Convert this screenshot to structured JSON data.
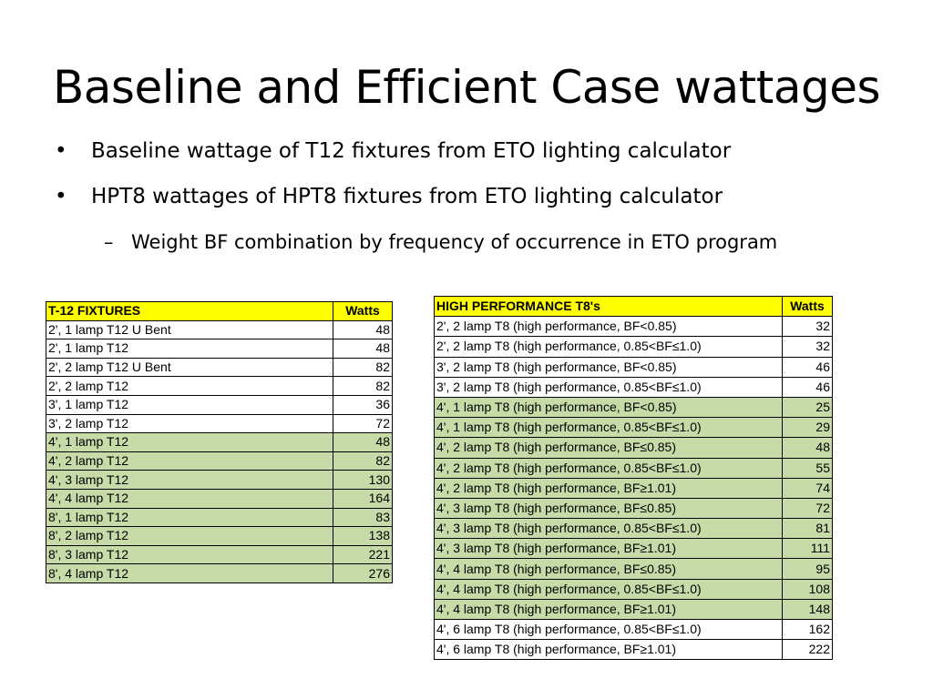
{
  "slide": {
    "title": "Baseline and Efficient Case wattages",
    "bullets": [
      "Baseline wattage of T12 fixtures from ETO lighting calculator",
      "HPT8 wattages of HPT8 fixtures from ETO lighting calculator"
    ],
    "sub_bullet": "Weight BF combination by frequency of occurrence in ETO program",
    "bullet_symbol": "•",
    "dash_symbol": "–"
  },
  "colors": {
    "header_fill": "#ffff00",
    "highlight_fill": "#c6dba7"
  },
  "t12_table": {
    "headers": [
      "T-12 FIXTURES",
      "Watts"
    ],
    "rows": [
      {
        "fixture": "2', 1 lamp T12 U Bent",
        "watts": "48",
        "highlight": false
      },
      {
        "fixture": "2', 1 lamp T12",
        "watts": "48",
        "highlight": false
      },
      {
        "fixture": "2', 2 lamp T12 U Bent",
        "watts": "82",
        "highlight": false
      },
      {
        "fixture": "2', 2 lamp T12",
        "watts": "82",
        "highlight": false
      },
      {
        "fixture": "3', 1 lamp T12",
        "watts": "36",
        "highlight": false
      },
      {
        "fixture": "3', 2 lamp T12",
        "watts": "72",
        "highlight": false
      },
      {
        "fixture": "4', 1 lamp T12",
        "watts": "48",
        "highlight": true
      },
      {
        "fixture": "4', 2 lamp T12",
        "watts": "82",
        "highlight": true
      },
      {
        "fixture": "4', 3 lamp T12",
        "watts": "130",
        "highlight": true
      },
      {
        "fixture": "4', 4 lamp T12",
        "watts": "164",
        "highlight": true
      },
      {
        "fixture": "8', 1 lamp T12",
        "watts": "83",
        "highlight": true
      },
      {
        "fixture": "8', 2 lamp T12",
        "watts": "138",
        "highlight": true
      },
      {
        "fixture": "8', 3 lamp T12",
        "watts": "221",
        "highlight": true
      },
      {
        "fixture": "8', 4 lamp T12",
        "watts": "276",
        "highlight": true
      }
    ]
  },
  "t8_table": {
    "headers": [
      "HIGH PERFORMANCE T8's",
      "Watts"
    ],
    "rows": [
      {
        "fixture": "2', 2 lamp T8 (high performance, BF<0.85)",
        "watts": "32",
        "highlight": false
      },
      {
        "fixture": "2', 2 lamp T8 (high performance, 0.85<BF≤1.0)",
        "watts": "32",
        "highlight": false
      },
      {
        "fixture": "3', 2 lamp T8 (high performance, BF<0.85)",
        "watts": "46",
        "highlight": false
      },
      {
        "fixture": "3', 2 lamp T8 (high performance, 0.85<BF≤1.0)",
        "watts": "46",
        "highlight": false
      },
      {
        "fixture": "4', 1 lamp T8 (high performance, BF<0.85)",
        "watts": "25",
        "highlight": true
      },
      {
        "fixture": "4', 1 lamp T8 (high performance, 0.85<BF≤1.0)",
        "watts": "29",
        "highlight": true
      },
      {
        "fixture": "4', 2 lamp T8 (high performance, BF≤0.85)",
        "watts": "48",
        "highlight": true
      },
      {
        "fixture": "4', 2 lamp T8 (high performance, 0.85<BF≤1.0)",
        "watts": "55",
        "highlight": true
      },
      {
        "fixture": "4', 2 lamp T8 (high performance, BF≥1.01)",
        "watts": "74",
        "highlight": true
      },
      {
        "fixture": "4', 3 lamp T8 (high performance, BF≤0.85)",
        "watts": "72",
        "highlight": true
      },
      {
        "fixture": "4', 3 lamp T8 (high performance, 0.85<BF≤1.0)",
        "watts": "81",
        "highlight": true
      },
      {
        "fixture": "4', 3 lamp T8 (high performance, BF≥1.01)",
        "watts": "111",
        "highlight": true
      },
      {
        "fixture": "4', 4 lamp T8 (high performance, BF≤0.85)",
        "watts": "95",
        "highlight": true
      },
      {
        "fixture": "4', 4 lamp T8 (high performance, 0.85<BF≤1.0)",
        "watts": "108",
        "highlight": true
      },
      {
        "fixture": "4', 4 lamp T8 (high performance, BF≥1.01)",
        "watts": "148",
        "highlight": true
      },
      {
        "fixture": "4', 6 lamp T8 (high performance, 0.85<BF≤1.0)",
        "watts": "162",
        "highlight": false
      },
      {
        "fixture": "4', 6 lamp T8 (high performance, BF≥1.01)",
        "watts": "222",
        "highlight": false
      }
    ]
  }
}
